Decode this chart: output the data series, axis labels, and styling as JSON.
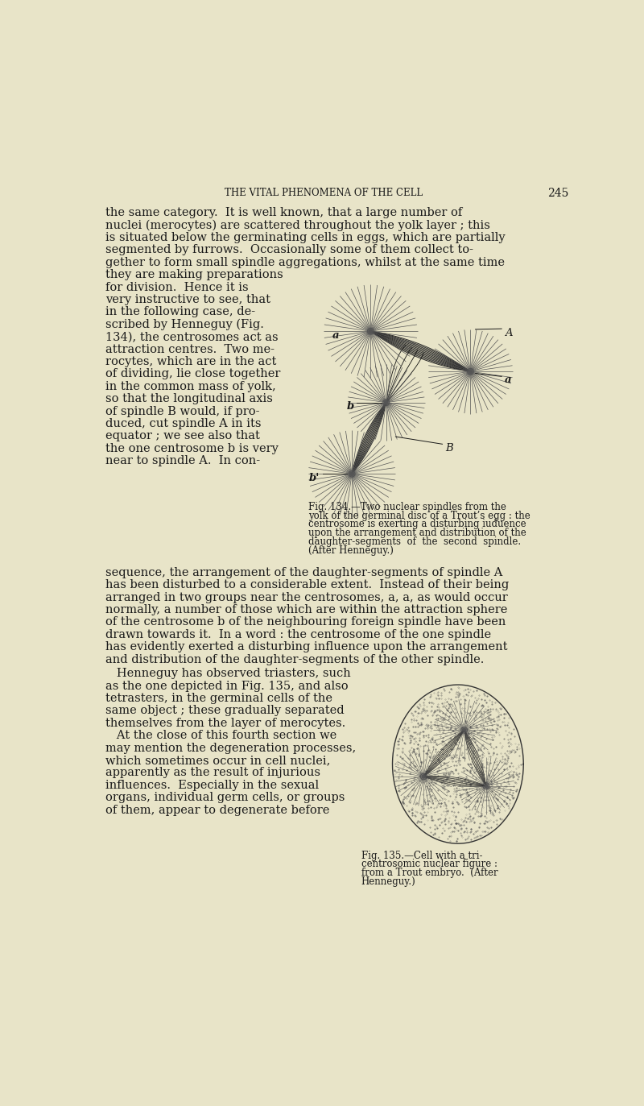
{
  "background_color": "#e8e4c8",
  "font_color": "#1a1a1a",
  "header_text": "THE VITAL PHENOMENA OF THE CELL",
  "page_number": "245",
  "para1": "the same category.  It is well known, that a large number of\nnuclei (merocytes) are scattered throughout the yolk layer ; this\nis situated below the germinating cells in eggs, which are partially\nsegmented by furrows.  Occasionally some of them collect to-\ngether to form small spindle aggregations, whilst at the same time",
  "left2": [
    "they are making preparations",
    "for division.  Hence it is",
    "very instructive to see, that",
    "in the following case, de-",
    "scribed by Henneguy (Fig.",
    "134), the centrosomes act as",
    "attraction centres.  Two me-",
    "rocytes, which are in the act",
    "of dividing, lie close together",
    "in the common mass of yolk,",
    "so that the longitudinal axis",
    "of spindle B would, if pro-",
    "duced, cut spindle A in its",
    "equator ; we see also that",
    "the one centrosome b is very",
    "near to spindle A.  In con-"
  ],
  "fig134_caption": [
    "Fig. 134.—Two nuclear spindles from the",
    "yolk of the germinal disc of a Trout’s egg : the",
    "centrosome is exerting a disturbing iuduence",
    "upon the arrangement and distribution of the",
    "daughter-segments  of  the  second  spindle.",
    "(After Henneguy.)"
  ],
  "para2": [
    "sequence, the arrangement of the daughter-segments of spindle A",
    "has been disturbed to a considerable extent.  Instead of their being",
    "arranged in two groups near the centrosomes, a, a, as would occur",
    "normally, a number of those which are within the attraction sphere",
    "of the centrosome b of the neighbouring foreign spindle have been",
    "drawn towards it.  In a word : the centrosome of the one spindle",
    "has evidently exerted a disturbing influence upon the arrangement",
    "and distribution of the daughter-segments of the other spindle."
  ],
  "left3": [
    "   Henneguy has observed triasters, such",
    "as the one depicted in Fig. 135, and also",
    "tetrasters, in the germinal cells of the",
    "same object ; these gradually separated",
    "themselves from the layer of merocytes.",
    "   At the close of this fourth section we",
    "may mention the degeneration processes,",
    "which sometimes occur in cell nuclei,",
    "apparently as the result of injurious",
    "influences.  Especially in the sexual",
    "organs, individual germ cells, or groups",
    "of them, appear to degenerate before"
  ],
  "fig135_caption": [
    "Fig. 135.—Cell with a tri-",
    "centrosomic nuclear figure :",
    "from a Trout embryo.  (After",
    "Henneguy.)"
  ]
}
